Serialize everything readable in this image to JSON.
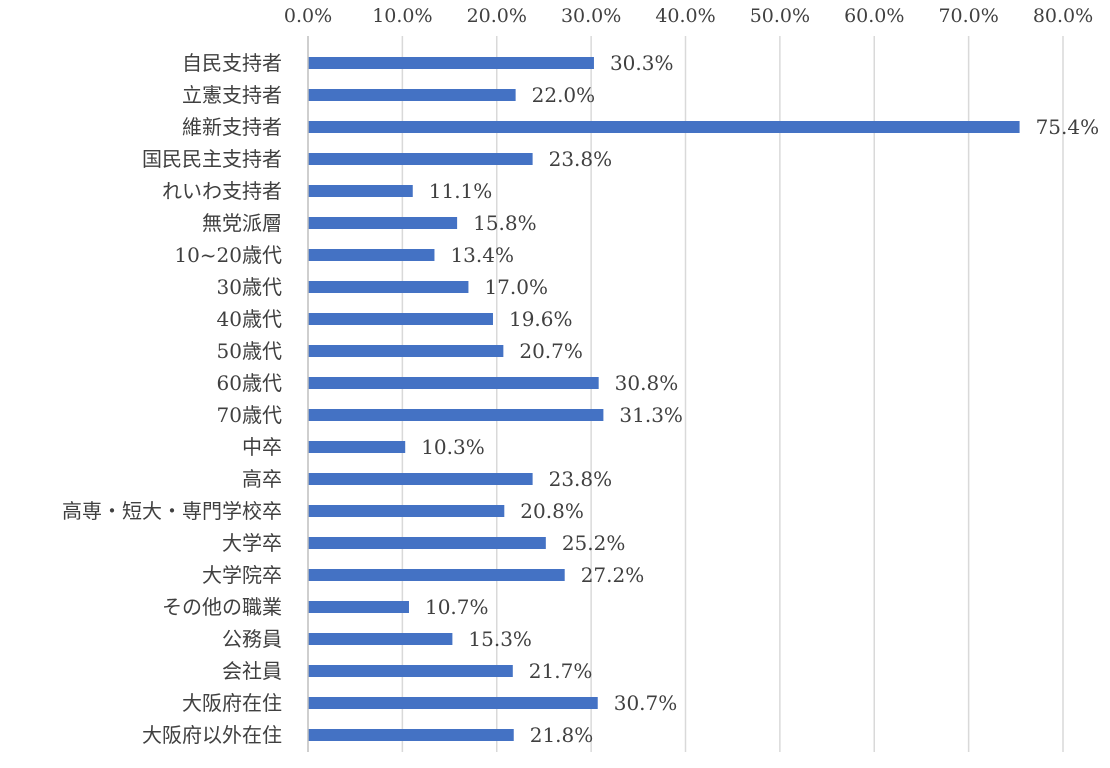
{
  "chart_data": {
    "type": "bar",
    "orientation": "horizontal",
    "title": "",
    "xlabel": "",
    "ylabel": "",
    "xlim": [
      0,
      80
    ],
    "x_axis_position": "top",
    "grid": true,
    "legend": "none",
    "bar_color": "#4472c4",
    "ticks": [
      "0.0%",
      "10.0%",
      "20.0%",
      "30.0%",
      "40.0%",
      "50.0%",
      "60.0%",
      "70.0%",
      "80.0%"
    ],
    "categories": [
      "自民支持者",
      "立憲支持者",
      "維新支持者",
      "国民民主支持者",
      "れいわ支持者",
      "無党派層",
      "10~20歳代",
      "30歳代",
      "40歳代",
      "50歳代",
      "60歳代",
      "70歳代",
      "中卒",
      "高卒",
      "高専・短大・専門学校卒",
      "大学卒",
      "大学院卒",
      "その他の職業",
      "公務員",
      "会社員",
      "大阪府在住",
      "大阪府以外在住"
    ],
    "values": [
      30.3,
      22.0,
      75.4,
      23.8,
      11.1,
      15.8,
      13.4,
      17.0,
      19.6,
      20.7,
      30.8,
      31.3,
      10.3,
      23.8,
      20.8,
      25.2,
      27.2,
      10.7,
      15.3,
      21.7,
      30.7,
      21.8
    ],
    "value_labels": [
      "30.3%",
      "22.0%",
      "75.4%",
      "23.8%",
      "11.1%",
      "15.8%",
      "13.4%",
      "17.0%",
      "19.6%",
      "20.7%",
      "30.8%",
      "31.3%",
      "10.3%",
      "23.8%",
      "20.8%",
      "25.2%",
      "27.2%",
      "10.7%",
      "15.3%",
      "21.7%",
      "30.7%",
      "21.8%"
    ]
  }
}
